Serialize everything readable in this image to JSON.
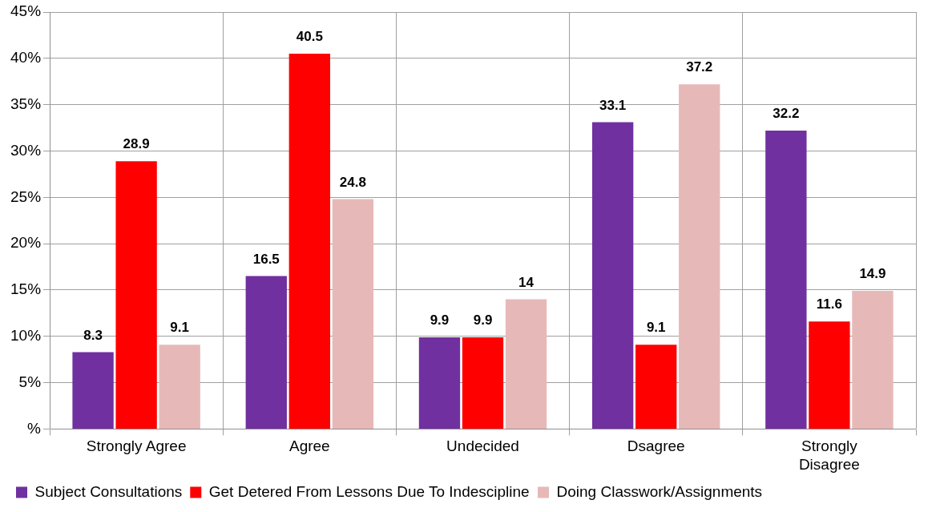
{
  "chart_data": {
    "type": "bar",
    "categories": [
      "Strongly Agree",
      "Agree",
      "Undecided",
      "Dsagree",
      "Strongly Disagree"
    ],
    "series": [
      {
        "name": "Subject Consultations",
        "color": "#7030a0",
        "values": [
          8.3,
          16.5,
          9.9,
          33.1,
          32.2
        ]
      },
      {
        "name": "Get Detered From Lessons Due To Indescipline",
        "color": "#ff0000",
        "values": [
          28.9,
          40.5,
          9.9,
          9.1,
          11.6
        ]
      },
      {
        "name": "Doing Classwork/Assignments",
        "color": "#e6b9b8",
        "values": [
          9.1,
          24.8,
          14,
          37.2,
          14.9
        ]
      }
    ],
    "ylim": [
      0,
      45
    ],
    "yticks": [
      {
        "value": 0,
        "label": "%"
      },
      {
        "value": 5,
        "label": "5%"
      },
      {
        "value": 10,
        "label": "10%"
      },
      {
        "value": 15,
        "label": "15%"
      },
      {
        "value": 20,
        "label": "20%"
      },
      {
        "value": 25,
        "label": "25%"
      },
      {
        "value": 30,
        "label": "30%"
      },
      {
        "value": 35,
        "label": "35%"
      },
      {
        "value": 40,
        "label": "40%"
      },
      {
        "value": 45,
        "label": "45%"
      }
    ],
    "grid": true,
    "legend": "bottom",
    "data_labels": true
  }
}
